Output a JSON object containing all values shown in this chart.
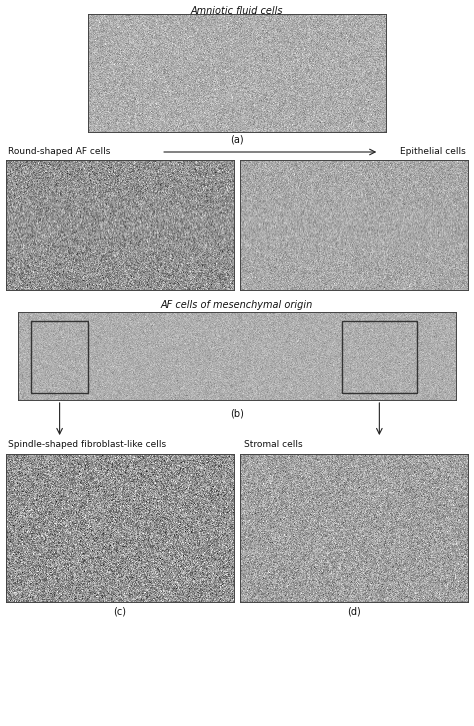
{
  "title_a": "Amniotic fluid cells",
  "label_a": "(a)",
  "label_b": "(b)",
  "label_c": "(c)",
  "label_d": "(d)",
  "label_round": "Round-shaped AF cells",
  "label_epithelial": "Epithelial cells",
  "label_mesenchymal": "AF cells of mesenchymal origin",
  "label_spindle": "Spindle-shaped fibroblast-like cells",
  "label_stromal": "Stromal cells",
  "bg_color": "#ffffff",
  "border_color": "#444444",
  "text_color": "#111111",
  "fontsize_title": 7.0,
  "fontsize_label": 7.0,
  "fontsize_sub": 6.5,
  "arrow_color": "#222222",
  "img_base_a": 175,
  "img_noise_a": 18,
  "img_base_b1": 148,
  "img_noise_b1": 30,
  "img_base_b2": 170,
  "img_noise_b2": 18,
  "img_base_wide": 175,
  "img_noise_wide": 12,
  "img_base_c": 148,
  "img_noise_c": 35,
  "img_base_d": 162,
  "img_noise_d": 25
}
